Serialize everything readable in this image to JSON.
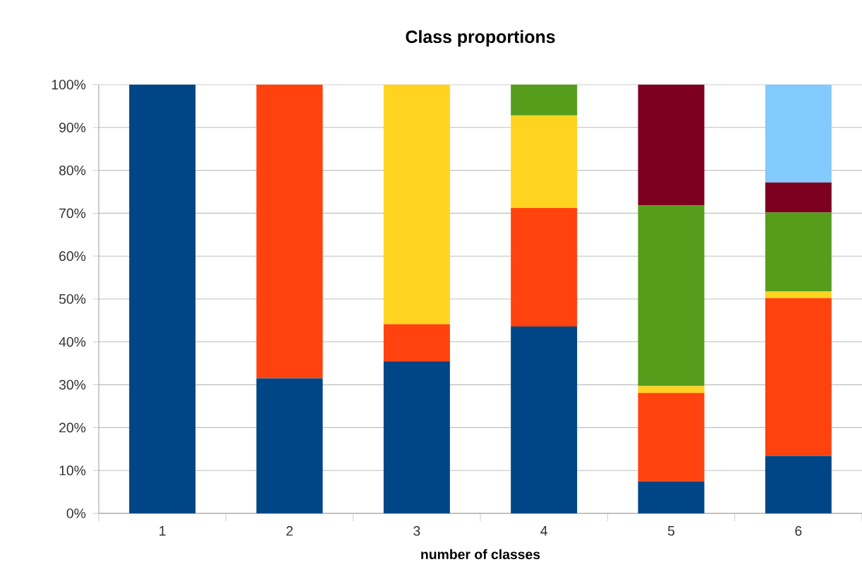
{
  "chart_data": {
    "type": "bar",
    "stacked": true,
    "title": "Class proportions",
    "xlabel": "number of classes",
    "categories": [
      "1",
      "2",
      "3",
      "4",
      "5",
      "6"
    ],
    "series": [
      {
        "color": "#004586",
        "values": [
          100,
          31.5,
          35.5,
          43.6,
          7.5,
          13.4
        ]
      },
      {
        "color": "#ff420e",
        "values": [
          null,
          68.5,
          8.6,
          27.6,
          20.6,
          36.8
        ]
      },
      {
        "color": "#ffd320",
        "values": [
          null,
          null,
          55.9,
          21.6,
          1.6,
          1.6
        ]
      },
      {
        "color": "#579d1c",
        "values": [
          null,
          null,
          null,
          7.2,
          42.1,
          18.4
        ]
      },
      {
        "color": "#7e0021",
        "values": [
          null,
          null,
          null,
          null,
          28.2,
          7.0
        ]
      },
      {
        "color": "#83caff",
        "values": [
          null,
          null,
          null,
          null,
          null,
          22.8
        ]
      }
    ],
    "ylim": [
      0,
      100
    ],
    "yticks": [
      {
        "value": 0,
        "label": "0%"
      },
      {
        "value": 10,
        "label": "10%"
      },
      {
        "value": 20,
        "label": "20%"
      },
      {
        "value": 30,
        "label": "30%"
      },
      {
        "value": 40,
        "label": "40%"
      },
      {
        "value": 50,
        "label": "50%"
      },
      {
        "value": 60,
        "label": "60%"
      },
      {
        "value": 70,
        "label": "70%"
      },
      {
        "value": 80,
        "label": "80%"
      },
      {
        "value": 90,
        "label": "90%"
      },
      {
        "value": 100,
        "label": "100%"
      }
    ],
    "grid": "y"
  }
}
